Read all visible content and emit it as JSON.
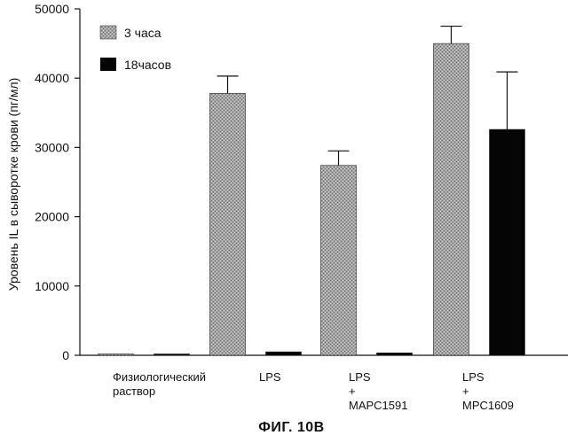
{
  "chart_data": {
    "type": "bar",
    "title": "",
    "caption": "ФИГ. 10B",
    "xlabel": "",
    "ylabel": "Уровень IL в сыворотке крови (пг/мл)",
    "ylim": [
      0,
      50000
    ],
    "yticks": [
      "0",
      "10000",
      "20000",
      "30000",
      "40000",
      "50000"
    ],
    "ytick_values": [
      0,
      10000,
      20000,
      30000,
      40000,
      50000
    ],
    "grid": false,
    "legend_position": "top-left",
    "categories": [
      {
        "lines": [
          "Физиологический",
          "раствор"
        ]
      },
      {
        "lines": [
          "LPS"
        ]
      },
      {
        "lines": [
          "LPS",
          "+",
          "MAPC1591"
        ]
      },
      {
        "lines": [
          "LPS",
          "+",
          "MPC1609"
        ]
      }
    ],
    "series": [
      {
        "name": "3 часа",
        "color": "#9e9e9e",
        "pattern": "stipple",
        "values": [
          100,
          37800,
          27400,
          45000
        ],
        "errors": [
          0,
          2500,
          2100,
          2500
        ]
      },
      {
        "name": "18часов",
        "color": "#050505",
        "pattern": "solid",
        "values": [
          100,
          500,
          350,
          32600
        ],
        "errors": [
          0,
          0,
          0,
          8300
        ]
      }
    ]
  }
}
